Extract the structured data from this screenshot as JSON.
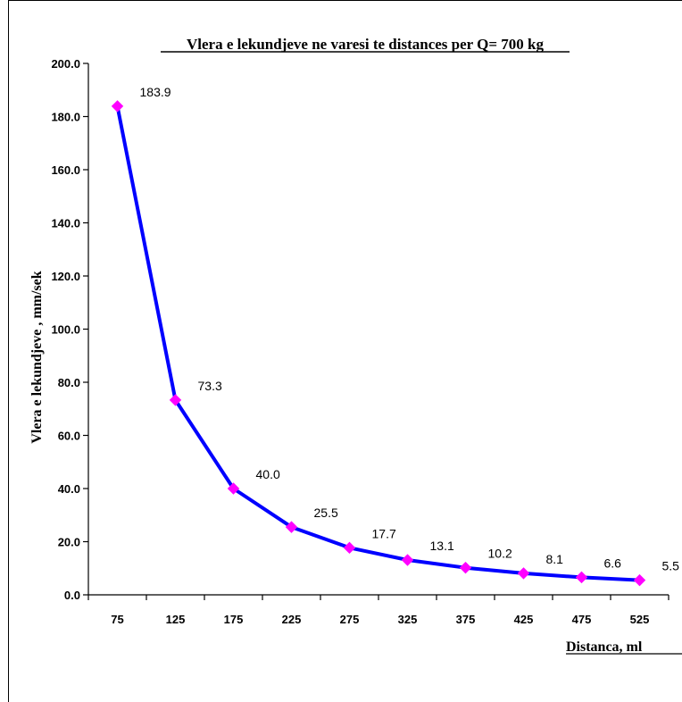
{
  "chart_data": {
    "type": "line",
    "title": "Vlera e lekundjeve ne varesi te distances per Q= 700 kg",
    "xlabel": "Distanca, ml",
    "ylabel": "Vlera e lekundjeve , mm/sek",
    "categories": [
      "75",
      "125",
      "175",
      "225",
      "275",
      "325",
      "375",
      "425",
      "475",
      "525"
    ],
    "series": [
      {
        "values": [
          183.9,
          73.3,
          40.0,
          25.5,
          17.7,
          13.1,
          10.2,
          8.1,
          6.6,
          5.5
        ],
        "labels": [
          "183.9",
          "73.3",
          "40.0",
          "25.5",
          "17.7",
          "13.1",
          "10.2",
          "8.1",
          "6.6",
          "5.5"
        ]
      }
    ],
    "ylim": [
      0,
      200
    ],
    "yticks": [
      "0.0",
      "20.0",
      "40.0",
      "60.0",
      "80.0",
      "100.0",
      "120.0",
      "140.0",
      "160.0",
      "180.0",
      "200.0"
    ],
    "grid": false,
    "legend": "none",
    "colors": {
      "line": "#0000ff",
      "marker": "#ff00ff",
      "axis": "#000000"
    }
  }
}
